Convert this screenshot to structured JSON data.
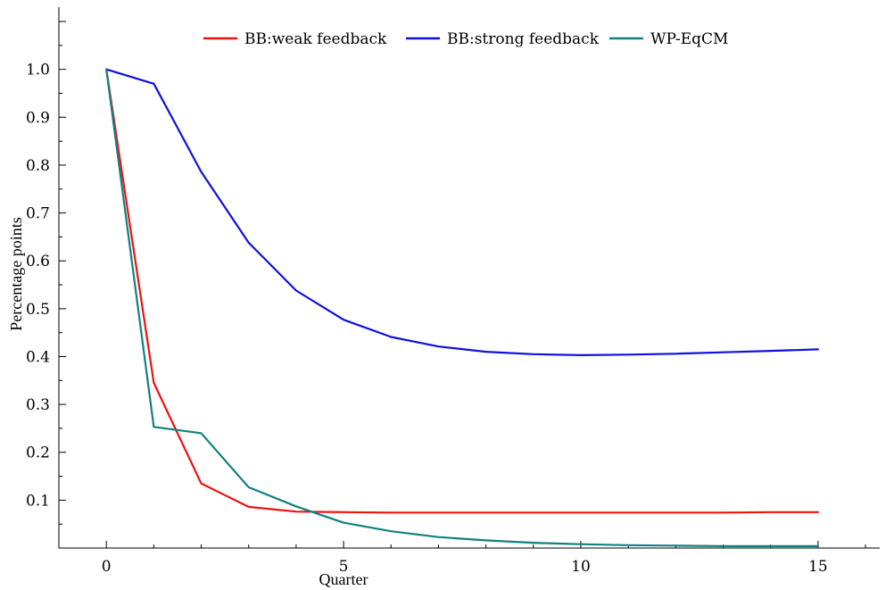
{
  "chart_data": {
    "type": "line",
    "xlabel": "Quarter",
    "ylabel": "Percentage points",
    "xlim": [
      -1,
      16.3
    ],
    "ylim": [
      0.0,
      1.13
    ],
    "x_ticks": [
      0,
      5,
      10,
      15
    ],
    "y_ticks": [
      0.1,
      0.2,
      0.3,
      0.4,
      0.5,
      0.6,
      0.7,
      0.8,
      0.9,
      1.0
    ],
    "y_tick_labels": [
      "0.1",
      "0.2",
      "0.3",
      "0.4",
      "0.5",
      "0.6",
      "0.7",
      "0.8",
      "0.9",
      "1.0"
    ],
    "grid": false,
    "legend_position": "top-center",
    "x": [
      0,
      1,
      2,
      3,
      4,
      5,
      6,
      7,
      8,
      9,
      10,
      11,
      12,
      13,
      14,
      15
    ],
    "series": [
      {
        "name": "BB:weak feedback",
        "color": "#ee1111",
        "values": [
          1.0,
          0.345,
          0.135,
          0.086,
          0.076,
          0.075,
          0.074,
          0.074,
          0.074,
          0.074,
          0.074,
          0.074,
          0.074,
          0.074,
          0.075,
          0.075
        ]
      },
      {
        "name": "BB:strong feedback",
        "color": "#1010dd",
        "values": [
          1.0,
          0.97,
          0.786,
          0.638,
          0.538,
          0.477,
          0.441,
          0.421,
          0.41,
          0.405,
          0.403,
          0.404,
          0.406,
          0.409,
          0.412,
          0.415
        ]
      },
      {
        "name": "WP-EqCM",
        "color": "#118080",
        "values": [
          1.0,
          0.253,
          0.24,
          0.127,
          0.087,
          0.053,
          0.035,
          0.023,
          0.016,
          0.011,
          0.008,
          0.006,
          0.005,
          0.004,
          0.004,
          0.004
        ]
      }
    ]
  }
}
